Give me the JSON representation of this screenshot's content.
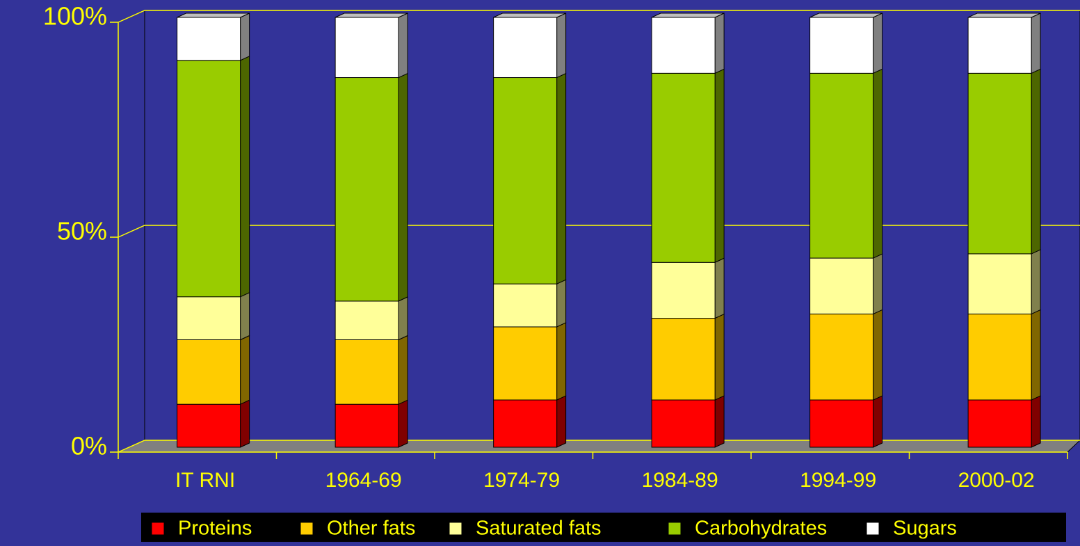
{
  "chart_data": {
    "type": "stacked_bar_3d",
    "categories": [
      "IT RNI",
      "1964-69",
      "1974-79",
      "1984-89",
      "1994-99",
      "2000-02"
    ],
    "series": [
      {
        "name": "Proteins",
        "color": "#ff0000",
        "values": [
          10,
          10,
          11,
          11,
          11,
          11
        ]
      },
      {
        "name": "Other fats",
        "color": "#ffcc00",
        "values": [
          15,
          15,
          17,
          19,
          20,
          20
        ]
      },
      {
        "name": "Saturated fats",
        "color": "#ffff99",
        "values": [
          10,
          9,
          10,
          13,
          13,
          14
        ]
      },
      {
        "name": "Carbohydrates",
        "color": "#99cc00",
        "values": [
          55,
          52,
          48,
          44,
          43,
          42
        ]
      },
      {
        "name": "Sugars",
        "color": "#ffffff",
        "values": [
          10,
          14,
          14,
          13,
          13,
          13
        ]
      }
    ],
    "ylim": [
      0,
      100
    ],
    "yticks": [
      {
        "value": 0,
        "label": "0%"
      },
      {
        "value": 50,
        "label": "50%"
      },
      {
        "value": 100,
        "label": "100%"
      }
    ],
    "grid": true
  }
}
